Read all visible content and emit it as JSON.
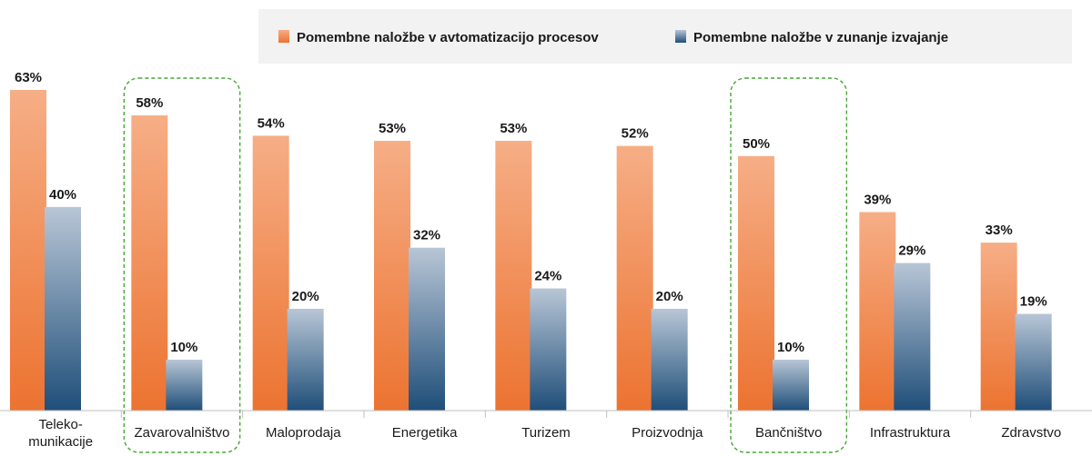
{
  "chart_data": {
    "type": "bar",
    "categories": [
      [
        "Teleko-",
        "munikacije"
      ],
      [
        "Zavarovalništvo"
      ],
      [
        "Maloprodaja"
      ],
      [
        "Energetika"
      ],
      [
        "Turizem"
      ],
      [
        "Proizvodnja"
      ],
      [
        "Bančništvo"
      ],
      [
        "Infrastruktura"
      ],
      [
        "Zdravstvo"
      ]
    ],
    "series": [
      {
        "name": "Pomembne naložbe v avtomatizacijo procesov",
        "values": [
          63,
          58,
          54,
          53,
          53,
          52,
          50,
          39,
          33
        ],
        "labels": [
          "63%",
          "58%",
          "54%",
          "53%",
          "53%",
          "52%",
          "50%",
          "39%",
          "33%"
        ]
      },
      {
        "name": "Pomembne naložbe v zunanje izvajanje",
        "values": [
          40,
          10,
          20,
          32,
          24,
          20,
          10,
          29,
          19
        ],
        "labels": [
          "40%",
          "10%",
          "20%",
          "32%",
          "24%",
          "20%",
          "10%",
          "29%",
          "19%"
        ]
      }
    ],
    "highlighted_categories": [
      "Zavarovalništvo",
      "Bančništvo"
    ],
    "legend_position": "top-right",
    "grid": false,
    "ylim": [
      0,
      63
    ],
    "colors": {
      "series1_top": "#f6ae86",
      "series1_bottom": "#ec7330",
      "series2_top": "#b8c6d6",
      "series2_bottom": "#1f4e79",
      "highlight_border": "#44a832",
      "legend_bg": "#f2f2f2",
      "axis": "#bfbfbf"
    }
  }
}
